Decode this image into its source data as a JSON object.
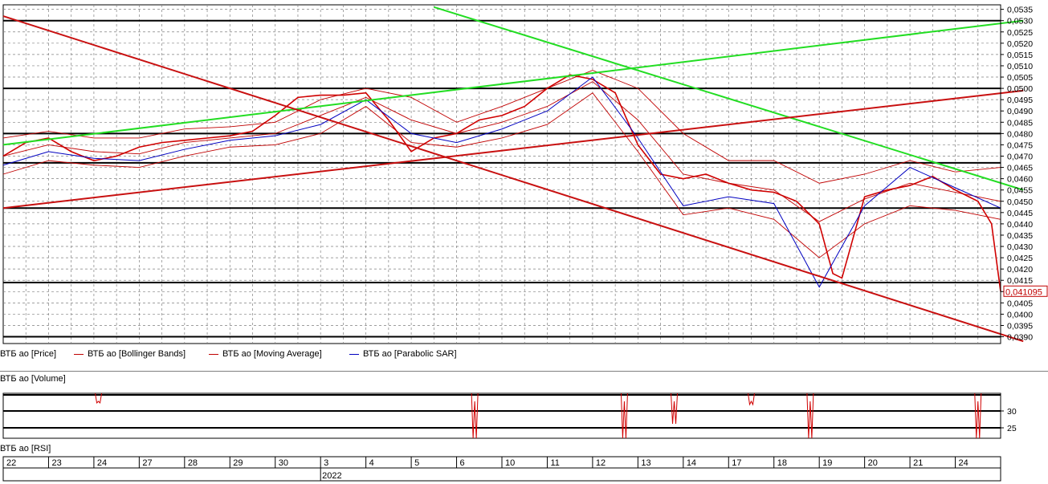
{
  "colors": {
    "price": "#d00000",
    "bollinger": "#c00000",
    "moving_average": "#c00000",
    "parabolic_sar": "#0000c0",
    "trend_green": "#22dd22",
    "trend_red": "#c81010",
    "grid": "#808080",
    "current_price_box": "#c00000"
  },
  "legend": [
    {
      "label": "ВТБ ао [Price]",
      "color": "#d00000"
    },
    {
      "label": "ВТБ ао [Bollinger Bands]",
      "color": "#c00000"
    },
    {
      "label": "ВТБ ао [Moving Average]",
      "color": "#c00000"
    },
    {
      "label": "ВТБ ао [Parabolic SAR]",
      "color": "#0000c0"
    }
  ],
  "volume_pane": {
    "label": "ВТБ ао [Volume]",
    "y_ticks": [
      "30",
      "25"
    ]
  },
  "rsi_pane": {
    "label": "ВТБ ао [RSI]"
  },
  "date_axis": {
    "days": [
      "22",
      "23",
      "24",
      "27",
      "28",
      "29",
      "30",
      "3",
      "4",
      "5",
      "6",
      "10",
      "11",
      "12",
      "13",
      "14",
      "17",
      "18",
      "19",
      "20",
      "21",
      "24"
    ],
    "year_label": "2022",
    "year_label_day_index": 7
  },
  "current_price_label": "0,041095",
  "chart_data": {
    "type": "line",
    "title": "",
    "y_range": [
      0.0387,
      0.0537
    ],
    "y_ticks": [
      "0,0535",
      "0,0530",
      "0,0525",
      "0,0520",
      "0,0515",
      "0,0510",
      "0,0505",
      "0,0500",
      "0,0495",
      "0,0490",
      "0,0485",
      "0,0480",
      "0,0475",
      "0,0470",
      "0,0465",
      "0,0460",
      "0,0455",
      "0,0450",
      "0,0445",
      "0,0440",
      "0,0435",
      "0,0430",
      "0,0425",
      "0,0420",
      "0,0415",
      "0,0410",
      "0,0405",
      "0,0400",
      "0,0395",
      "0,0390"
    ],
    "x_categories": [
      "22",
      "23",
      "24",
      "27",
      "28",
      "29",
      "30",
      "3",
      "4",
      "5",
      "6",
      "10",
      "11",
      "12",
      "13",
      "14",
      "17",
      "18",
      "19",
      "20",
      "21",
      "24"
    ],
    "horizontal_levels": [
      0.053,
      0.05,
      0.048,
      0.0467,
      0.0447,
      0.0414,
      0.039
    ],
    "series": [
      {
        "name": "ВТБ ао [Price]",
        "style": "price",
        "x": [
          0,
          0.5,
          1,
          1.5,
          2,
          2.5,
          3,
          3.5,
          4,
          4.5,
          5,
          5.5,
          6,
          6.5,
          7,
          7.5,
          8,
          8.5,
          9,
          9.5,
          10,
          10.5,
          11,
          11.5,
          12,
          12.5,
          13,
          13.5,
          14,
          14.5,
          15,
          15.5,
          16,
          16.5,
          17,
          17.5,
          18,
          18.3,
          18.5,
          19,
          19.5,
          20,
          20.5,
          21,
          21.5,
          21.8,
          22
        ],
        "y": [
          0.047,
          0.0476,
          0.0478,
          0.0472,
          0.0468,
          0.047,
          0.0474,
          0.0476,
          0.0477,
          0.0478,
          0.0479,
          0.0481,
          0.0488,
          0.0496,
          0.0497,
          0.0497,
          0.0498,
          0.0486,
          0.0472,
          0.0478,
          0.048,
          0.0486,
          0.0488,
          0.0492,
          0.05,
          0.0506,
          0.0504,
          0.0498,
          0.0475,
          0.0462,
          0.046,
          0.0462,
          0.0458,
          0.0455,
          0.0454,
          0.045,
          0.044,
          0.0418,
          0.0416,
          0.0452,
          0.0455,
          0.0457,
          0.0461,
          0.0455,
          0.045,
          0.044,
          0.041
        ]
      },
      {
        "name": "ВТБ ао [Bollinger Bands] upper",
        "style": "bollinger",
        "x": [
          0,
          1,
          2,
          3,
          4,
          5,
          6,
          7,
          8,
          9,
          10,
          11,
          12,
          13,
          14,
          15,
          16,
          17,
          18,
          19,
          20,
          21,
          22
        ],
        "y": [
          0.0478,
          0.0481,
          0.0478,
          0.0478,
          0.0482,
          0.0483,
          0.0485,
          0.0495,
          0.05,
          0.0496,
          0.0485,
          0.0492,
          0.05,
          0.0508,
          0.05,
          0.048,
          0.0468,
          0.0468,
          0.0458,
          0.0462,
          0.0468,
          0.0463,
          0.0465
        ]
      },
      {
        "name": "ВТБ ао [Bollinger Bands] lower",
        "style": "bollinger",
        "x": [
          0,
          1,
          2,
          3,
          4,
          5,
          6,
          7,
          8,
          9,
          10,
          11,
          12,
          13,
          14,
          15,
          16,
          17,
          18,
          19,
          20,
          21,
          22
        ],
        "y": [
          0.0462,
          0.0468,
          0.0466,
          0.0465,
          0.047,
          0.0474,
          0.0475,
          0.048,
          0.0492,
          0.0476,
          0.0474,
          0.0478,
          0.0484,
          0.0498,
          0.0472,
          0.0444,
          0.0447,
          0.0442,
          0.0425,
          0.044,
          0.0448,
          0.0446,
          0.0442
        ]
      },
      {
        "name": "ВТБ ао [Moving Average]",
        "style": "ma",
        "x": [
          0,
          1,
          2,
          3,
          4,
          5,
          6,
          7,
          8,
          9,
          10,
          11,
          12,
          13,
          14,
          15,
          16,
          17,
          18,
          19,
          20,
          21,
          22
        ],
        "y": [
          0.047,
          0.0475,
          0.0472,
          0.0471,
          0.0476,
          0.0478,
          0.048,
          0.0488,
          0.0496,
          0.0486,
          0.048,
          0.0485,
          0.0492,
          0.0503,
          0.0486,
          0.0462,
          0.0458,
          0.0455,
          0.0441,
          0.0451,
          0.0458,
          0.0454,
          0.045
        ]
      },
      {
        "name": "ВТБ ао [Parabolic SAR]",
        "style": "sar",
        "x": [
          0,
          1,
          2,
          3,
          4,
          5,
          6,
          7,
          8,
          9,
          10,
          11,
          12,
          13,
          14,
          15,
          16,
          17,
          18,
          19,
          20,
          21,
          22
        ],
        "y": [
          0.0466,
          0.0472,
          0.0469,
          0.0468,
          0.0473,
          0.0477,
          0.0479,
          0.0484,
          0.0495,
          0.048,
          0.0476,
          0.0482,
          0.049,
          0.0505,
          0.0478,
          0.0448,
          0.0452,
          0.0449,
          0.0412,
          0.0448,
          0.0465,
          0.0456,
          0.0447
        ]
      }
    ],
    "trendlines": [
      {
        "color": "green",
        "x": [
          0,
          22.5
        ],
        "y": [
          0.0475,
          0.053
        ]
      },
      {
        "color": "green",
        "x": [
          9.5,
          22.5
        ],
        "y": [
          0.0536,
          0.0455
        ]
      },
      {
        "color": "red",
        "x": [
          0,
          22.5
        ],
        "y": [
          0.0532,
          0.0388
        ]
      },
      {
        "color": "red",
        "x": [
          0,
          22.5
        ],
        "y": [
          0.0447,
          0.0499
        ]
      }
    ]
  }
}
